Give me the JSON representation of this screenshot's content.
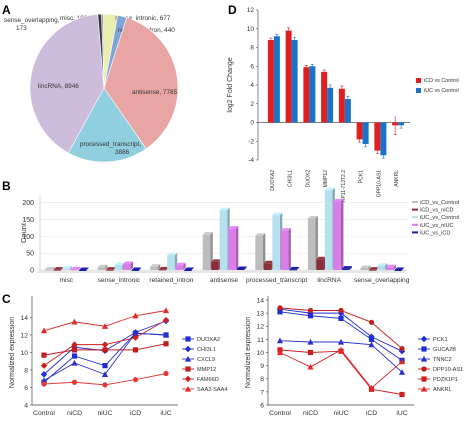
{
  "panels": {
    "a": "A",
    "b": "B",
    "c": "C",
    "d": "D"
  },
  "chart_data": [
    {
      "panel": "A",
      "type": "pie",
      "slices": [
        {
          "label": "misc",
          "value": 100,
          "text": "misc, 100",
          "color": "#9c9c9c"
        },
        {
          "label": "sense_intronic",
          "value": 677,
          "text": "sense_intronic, 677",
          "color": "#e9eeae"
        },
        {
          "label": "retained_intron",
          "value": 440,
          "text": "retained_intron, 440",
          "color": "#7ea6d8"
        },
        {
          "label": "antisense",
          "value": 7785,
          "text": "antisense, 7785",
          "color": "#e8a5a3"
        },
        {
          "label": "processed_transcript",
          "value": 3886,
          "text": "processed_transcript, 3886",
          "color": "#8fcfdf"
        },
        {
          "label": "lincRNA",
          "value": 8946,
          "text": "lincRNA, 8946",
          "color": "#cdbcdb"
        },
        {
          "label": "sense_overlapping",
          "value": 173,
          "text": "sense_overlapping, 173",
          "color": "#3a3a3a"
        }
      ]
    },
    {
      "panel": "B",
      "type": "bar",
      "categories": [
        "misc",
        "sense_intronic",
        "retained_intron",
        "antisense",
        "processed_transcript",
        "lincRNA",
        "sense_overlapping"
      ],
      "ylabel": "Count",
      "yticks": [
        0,
        50,
        100,
        150,
        200
      ],
      "ylim": [
        0,
        220
      ],
      "series": [
        {
          "name": "iCD_vs_Control",
          "color": "#bdbdbd",
          "values": [
            2,
            8,
            10,
            105,
            102,
            153,
            6
          ]
        },
        {
          "name": "iCD_vs_niCD",
          "color": "#8a2f3a",
          "values": [
            1,
            1,
            2,
            24,
            20,
            32,
            1
          ]
        },
        {
          "name": "iUC_vs_Control",
          "color": "#b5e0ee",
          "values": [
            4,
            15,
            44,
            178,
            163,
            237,
            13
          ]
        },
        {
          "name": "iUC_vs_niUC",
          "color": "#d97de8",
          "values": [
            2,
            18,
            14,
            123,
            117,
            204,
            8
          ]
        },
        {
          "name": "iUC_vs_iCD",
          "color": "#1c1ea0",
          "values": [
            0,
            0,
            0,
            3,
            2,
            4,
            0
          ]
        }
      ]
    },
    {
      "panel": "C-left",
      "type": "line",
      "categories": [
        "Control",
        "niCD",
        "niUC",
        "iCD",
        "iUC"
      ],
      "ylabel": "Normalized expression",
      "ylim": [
        4,
        16
      ],
      "yticks": [
        4,
        6,
        8,
        10,
        12,
        14
      ],
      "series": [
        {
          "name": "DUOXA2",
          "color": "#1f2fd6",
          "marker": "square",
          "values": [
            6.6,
            9.6,
            8.5,
            12.2,
            12.0
          ]
        },
        {
          "name": "CHI3L1",
          "color": "#1f2fd6",
          "marker": "diamond",
          "values": [
            7.5,
            10.6,
            10.2,
            12.3,
            13.6
          ]
        },
        {
          "name": "CXCL9",
          "color": "#2a2fc9",
          "marker": "triangle",
          "values": [
            6.8,
            8.8,
            7.5,
            12.2,
            12.0
          ]
        },
        {
          "name": "MMP12",
          "color": "#c01d1d",
          "marker": "square",
          "values": [
            9.7,
            10.3,
            10.3,
            10.3,
            11.0
          ]
        },
        {
          "name": "FAM66D",
          "color": "#cc1f1f",
          "marker": "diamond",
          "values": [
            8.5,
            10.9,
            10.9,
            11.7,
            13.7
          ]
        },
        {
          "name": "SAA2-SAA4",
          "color": "#e22a2a",
          "marker": "triangle",
          "values": [
            12.5,
            13.5,
            13.0,
            14.2,
            14.8
          ]
        },
        {
          "name": "",
          "color": "#e23a3a",
          "marker": "circle",
          "values": [
            6.4,
            6.6,
            6.3,
            6.9,
            7.6
          ]
        }
      ]
    },
    {
      "panel": "C-right",
      "type": "line",
      "categories": [
        "Control",
        "niCD",
        "niUC",
        "iCD",
        "iUC"
      ],
      "ylabel": "Normalized expression",
      "ylim": [
        6,
        14
      ],
      "yticks": [
        6,
        7,
        8,
        9,
        10,
        11,
        12,
        13,
        14
      ],
      "series": [
        {
          "name": "PCK1",
          "color": "#1f2fd6",
          "marker": "diamond",
          "values": [
            13.3,
            13.0,
            13.0,
            11.2,
            10.1
          ]
        },
        {
          "name": "GUCA2B",
          "color": "#1f2fd6",
          "marker": "square",
          "values": [
            13.1,
            12.8,
            12.6,
            11.0,
            9.4
          ]
        },
        {
          "name": "TNNC2",
          "color": "#2a2fc9",
          "marker": "triangle",
          "values": [
            10.9,
            10.8,
            10.8,
            10.6,
            8.5
          ]
        },
        {
          "name": "DPP10-AS1",
          "color": "#c01d1d",
          "marker": "circle",
          "values": [
            13.4,
            13.2,
            13.2,
            12.3,
            10.3
          ]
        },
        {
          "name": "PDZK1P1",
          "color": "#cc1f1f",
          "marker": "square",
          "values": [
            10.2,
            10.0,
            10.1,
            7.2,
            6.8
          ]
        },
        {
          "name": "ANKRL",
          "color": "#e22a2a",
          "marker": "triangle",
          "values": [
            10.0,
            8.9,
            10.2,
            7.3,
            9.3
          ]
        }
      ]
    },
    {
      "panel": "D",
      "type": "bar",
      "categories": [
        "DUOXA2",
        "CHI3L1",
        "DUOX2",
        "MMP12",
        "RP11-713T2.2",
        "PCK1",
        "DPP10-AS1",
        "ANKRL"
      ],
      "ylabel": "log2 Fold Change",
      "ylim": [
        -4,
        12
      ],
      "yticks": [
        -4,
        -2,
        0,
        2,
        4,
        6,
        8,
        10,
        12
      ],
      "series": [
        {
          "name": "iCD vs Control",
          "color": "#e02020",
          "values": [
            8.8,
            9.8,
            5.9,
            5.4,
            3.6,
            -1.8,
            -3.0,
            -0.3
          ],
          "errors": [
            0.2,
            0.3,
            0.2,
            0.2,
            0.3,
            0.3,
            0.3,
            1.0
          ]
        },
        {
          "name": "iUC vs Control",
          "color": "#1b73c9",
          "values": [
            9.2,
            8.8,
            6.0,
            3.7,
            2.5,
            -2.3,
            -3.5,
            -0.3
          ],
          "errors": [
            0.2,
            0.3,
            0.2,
            0.3,
            0.3,
            0.3,
            0.3,
            0.3
          ]
        }
      ]
    }
  ]
}
